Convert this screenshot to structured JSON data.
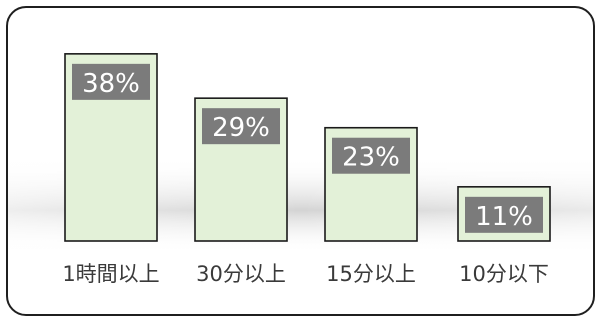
{
  "chart_data": {
    "type": "bar",
    "categories": [
      "1時間以上",
      "30分以上",
      "15分以上",
      "10分以下"
    ],
    "values": [
      38,
      29,
      23,
      11
    ],
    "data_labels": [
      "38%",
      "29%",
      "23%",
      "11%"
    ],
    "title": "",
    "xlabel": "",
    "ylabel": "",
    "ylim": [
      0,
      40
    ],
    "grid": false,
    "legend": "none",
    "colors": {
      "bar_fill": "#e3f1d8",
      "bar_stroke": "#1a1a1a",
      "label_box": "#7b7b7b",
      "label_text": "#ffffff",
      "category_text": "#3a3a3a",
      "shadow_band": "#c9c9c9"
    }
  }
}
